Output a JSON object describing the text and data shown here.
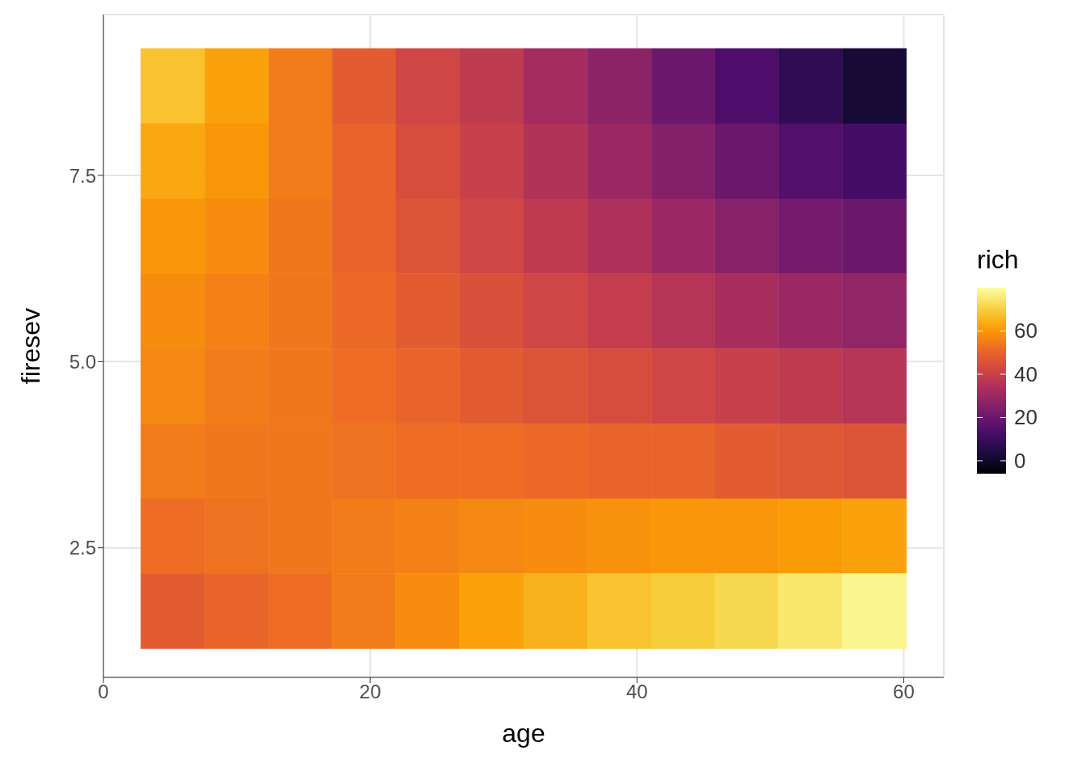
{
  "chart_data": {
    "type": "heatmap",
    "xlabel": "age",
    "ylabel": "firesev",
    "clabel": "rich",
    "x": [
      5.2,
      10.0,
      14.8,
      19.5,
      24.3,
      29.1,
      33.9,
      38.7,
      43.5,
      48.2,
      53.0,
      57.8
    ],
    "y": [
      8.7,
      7.69,
      6.68,
      5.68,
      4.67,
      3.66,
      2.66,
      1.65
    ],
    "cells": [
      [
        68,
        62,
        55,
        48,
        42,
        38,
        32,
        27,
        20,
        14,
        8,
        2
      ],
      [
        63,
        60,
        55,
        50,
        44,
        40,
        35,
        30,
        25,
        20,
        15,
        12
      ],
      [
        60,
        58,
        54,
        50,
        46,
        42,
        38,
        34,
        30,
        26,
        22,
        20
      ],
      [
        58,
        56,
        54,
        51,
        48,
        45,
        42,
        39,
        36,
        33,
        30,
        28
      ],
      [
        57,
        55,
        54,
        52,
        50,
        48,
        46,
        44,
        42,
        40,
        38,
        36
      ],
      [
        55,
        54,
        54,
        53,
        52,
        52,
        51,
        50,
        50,
        48,
        47,
        46
      ],
      [
        52,
        53,
        54,
        55,
        56,
        57,
        58,
        59,
        60,
        60,
        61,
        62
      ],
      [
        48,
        50,
        52,
        55,
        58,
        62,
        65,
        68,
        70,
        72,
        75,
        78
      ]
    ],
    "clim": [
      -6,
      80
    ],
    "cticks": [
      0,
      20,
      40,
      60
    ],
    "xlim": [
      0,
      63
    ],
    "xticks": [
      0,
      20,
      40,
      60
    ],
    "ylim": [
      0.76,
      9.66
    ],
    "yticks": [
      2.5,
      {
        "value": 5,
        "label": "5.0"
      },
      7.5
    ],
    "grid": true
  }
}
